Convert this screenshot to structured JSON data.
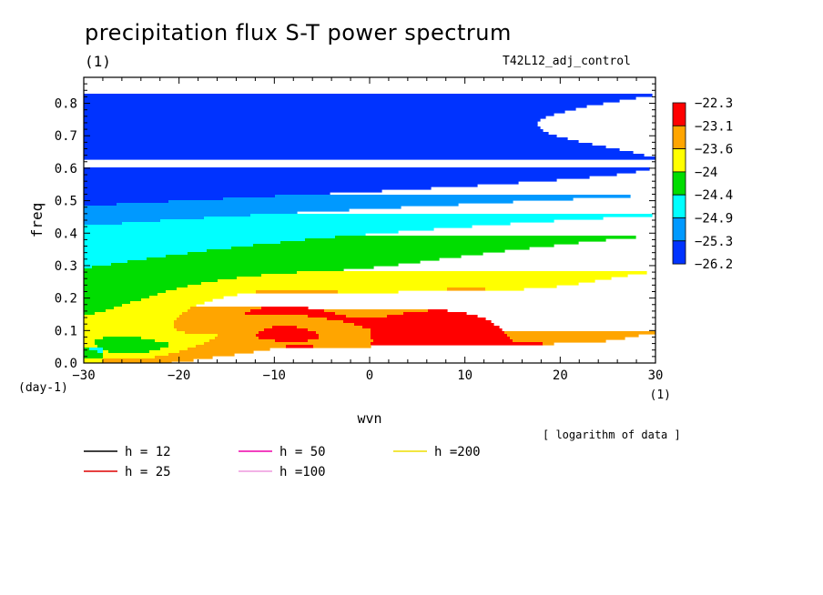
{
  "title": "precipitation flux S-T power spectrum",
  "unit_label": "(1)",
  "run_label": "T42L12_adj_control",
  "colorbar_note": "[ logarithm of data ]",
  "chart_data": {
    "type": "heatmap",
    "xlabel": "wvn",
    "ylabel": "freq",
    "x_unit": "(1)",
    "y_unit": "(day-1)",
    "xlim": [
      -30,
      30
    ],
    "ylim": [
      0,
      0.88
    ],
    "x_ticks": [
      -30,
      -20,
      -10,
      0,
      10,
      20,
      30
    ],
    "x_tick_labels": [
      "−30",
      "−20",
      "−10",
      "0",
      "10",
      "20",
      "30"
    ],
    "y_ticks": [
      0,
      0.1,
      0.2,
      0.3,
      0.4,
      0.5,
      0.6,
      0.7,
      0.8
    ],
    "y_tick_labels": [
      "0.0",
      "0.1",
      "0.2",
      "0.3",
      "0.4",
      "0.5",
      "0.6",
      "0.7",
      "0.8"
    ],
    "colorbar": {
      "labels": [
        "−22.3",
        "−23.1",
        "−23.6",
        "−24",
        "−24.4",
        "−24.9",
        "−25.3",
        "−26.2"
      ],
      "levels": [
        -23.1,
        -23.6,
        -24.0,
        -24.4,
        -24.9,
        -25.3
      ],
      "colors": [
        "#ff0000",
        "#ffa500",
        "#ffff00",
        "#00dd00",
        "#00ffff",
        "#0099ff",
        "#0033ff"
      ]
    },
    "series": [
      {
        "name": "h = 12",
        "h": 12,
        "color": "#000000"
      },
      {
        "name": "h = 25",
        "h": 25,
        "color": "#dd0000"
      },
      {
        "name": "h = 50",
        "h": 50,
        "color": "#ee00aa"
      },
      {
        "name": "h =100",
        "h": 100,
        "color": "#ee99dd"
      },
      {
        "name": "h =200",
        "h": 200,
        "color": "#eedd00"
      }
    ]
  }
}
